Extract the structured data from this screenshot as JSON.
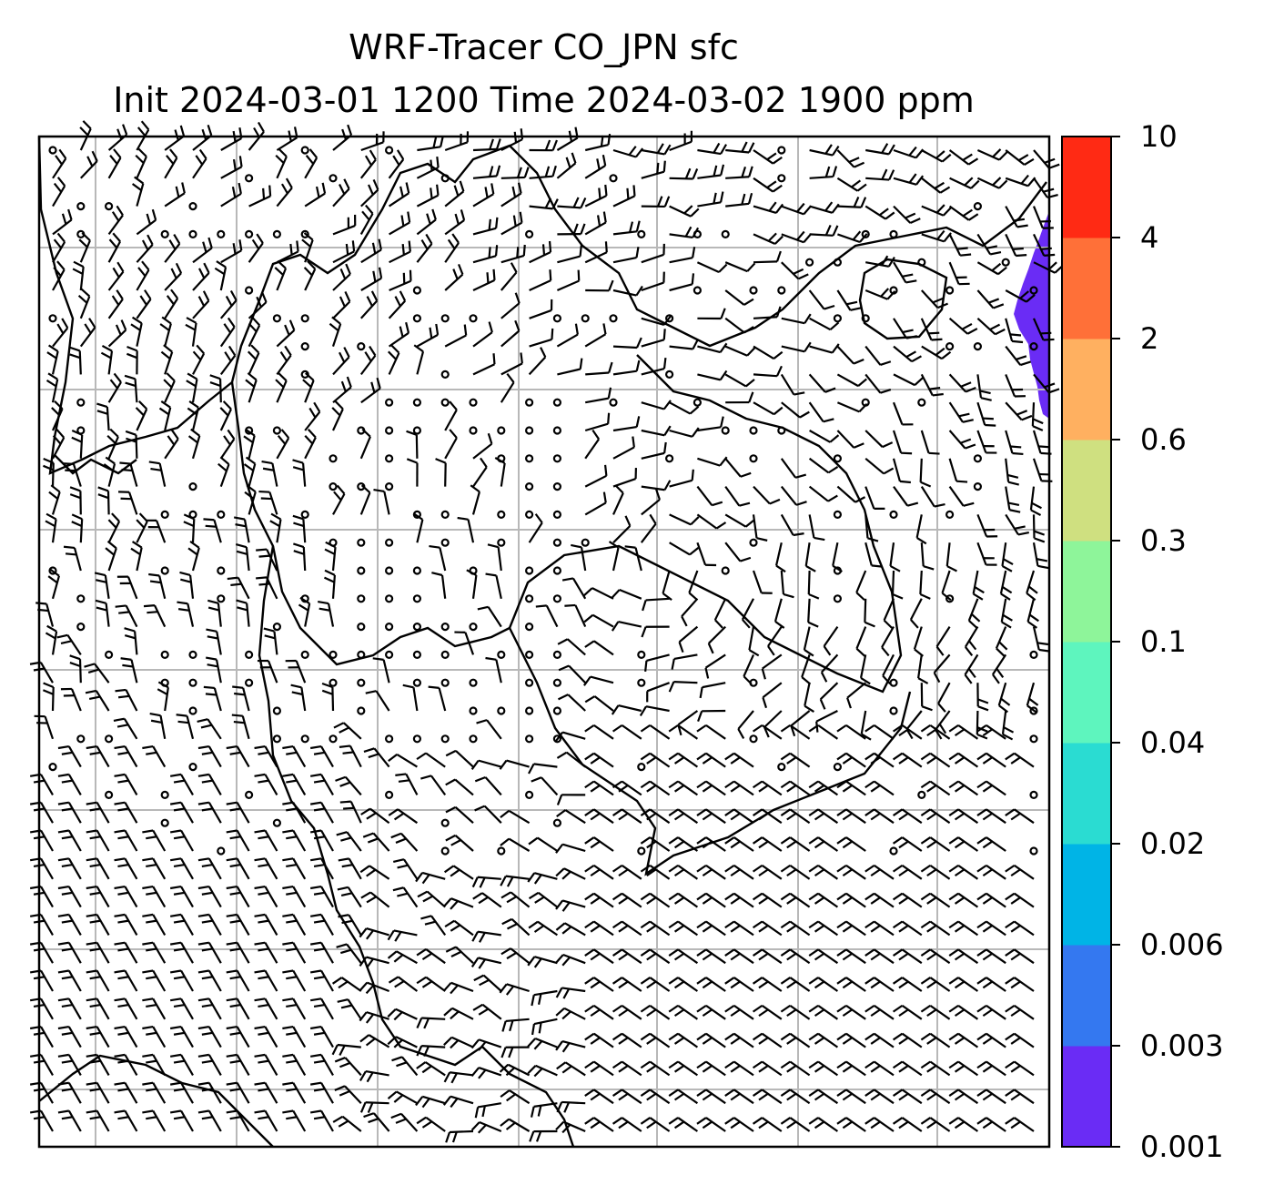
{
  "title": {
    "line1": "WRF-Tracer CO_JPN sfc",
    "line2": "Init 2024-03-01 1200 Time 2024-03-02 1900 ppm"
  },
  "colorbar": {
    "labels": [
      "0.001",
      "0.003",
      "0.006",
      "0.02",
      "0.04",
      "0.1",
      "0.3",
      "0.6",
      "2",
      "4",
      "10"
    ],
    "colors": [
      "#6a2cf5",
      "#3478f0",
      "#00b4e6",
      "#2adcd2",
      "#5ef5be",
      "#8ef59a",
      "#cfe080",
      "#ffb060",
      "#ff7038",
      "#ff2a14"
    ]
  },
  "plume_color": "#6a2cf5",
  "gridline_color": "#b8b8b8"
}
